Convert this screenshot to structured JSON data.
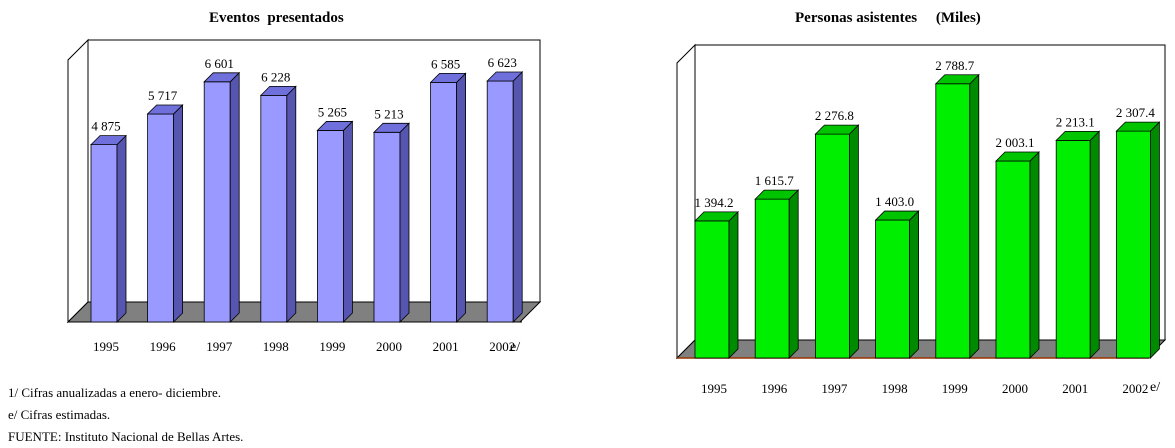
{
  "chart_data": [
    {
      "type": "bar",
      "title": "Eventos  presentados",
      "categories": [
        "1995",
        "1996",
        "1997",
        "1998",
        "1999",
        "2000",
        "2001",
        "2002"
      ],
      "values": [
        4875,
        5717,
        6601,
        6228,
        5265,
        5213,
        6585,
        6623
      ],
      "value_labels": [
        "4 875",
        "5 717",
        "6 601",
        "6 228",
        "5 265",
        "5 213",
        "6 585",
        "6 623"
      ],
      "category_suffix": "e/",
      "ylim": [
        0,
        7200
      ],
      "grid": false,
      "colors": {
        "bar_front": "#9999ff",
        "bar_top": "#7070dd",
        "bar_side": "#5656b0",
        "floor": "#808080"
      }
    },
    {
      "type": "bar",
      "title": "Personas asistentes     (Miles)",
      "categories": [
        "1995",
        "1996",
        "1997",
        "1998",
        "1999",
        "2000",
        "2001",
        "2002"
      ],
      "values": [
        1394.2,
        1615.7,
        2276.8,
        1403.0,
        2788.7,
        2003.1,
        2213.1,
        2307.4
      ],
      "value_labels": [
        "1 394.2",
        "1 615.7",
        "2 276.8",
        "1 403.0",
        "2 788.7",
        "2 003.1",
        "2 213.1",
        "2 307.4"
      ],
      "category_suffix": "e/",
      "ylim": [
        0,
        3000
      ],
      "grid": false,
      "colors": {
        "bar_front": "#00ee00",
        "bar_top": "#00c400",
        "bar_side": "#008a00",
        "floor": "#808080",
        "axis": "#993300"
      }
    }
  ],
  "footnotes": {
    "note1": "1/ Cifras anualizadas a enero- diciembre.",
    "note2": "e/ Cifras estimadas.",
    "source": "FUENTE: Instituto Nacional de Bellas Artes."
  }
}
